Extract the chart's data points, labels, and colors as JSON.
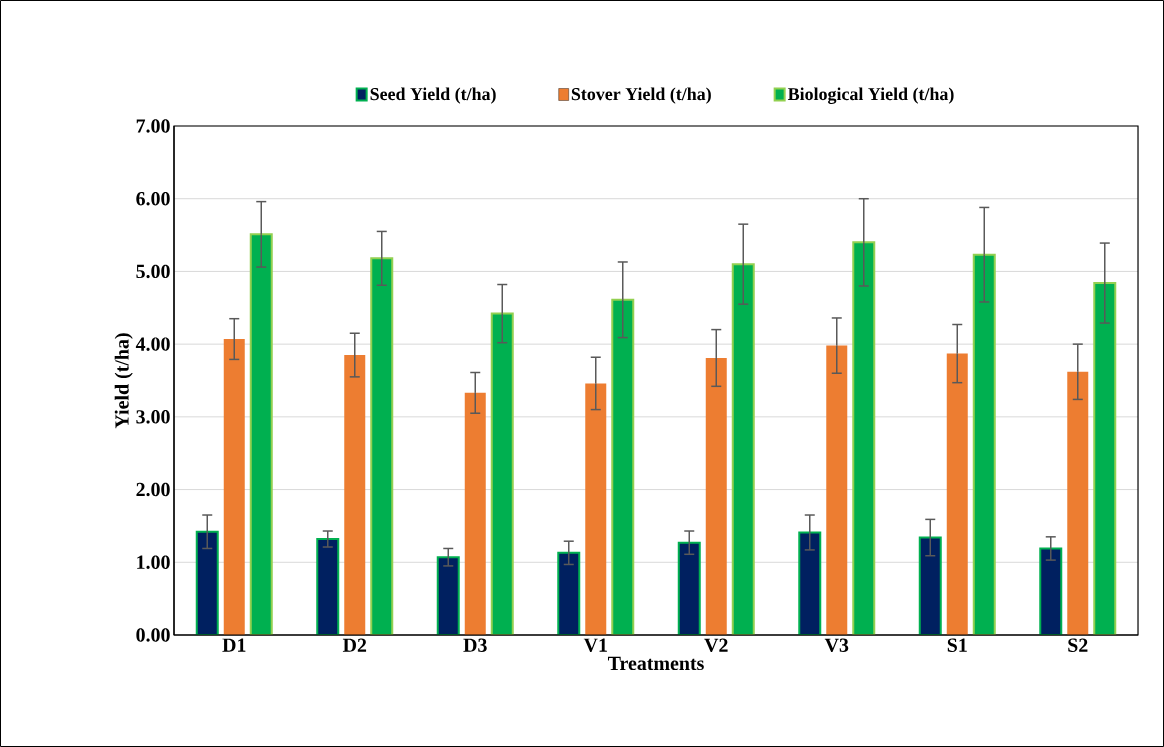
{
  "chart_data": {
    "type": "bar",
    "xlabel": "Treatments",
    "ylabel": "Yield (t/ha)",
    "categories": [
      "D1",
      "D2",
      "D3",
      "V1",
      "V2",
      "V3",
      "S1",
      "S2"
    ],
    "series": [
      {
        "name": "Seed Yield (t/ha)",
        "color": "#002060",
        "values": [
          1.42,
          1.32,
          1.07,
          1.13,
          1.27,
          1.41,
          1.34,
          1.19
        ],
        "errors": [
          0.23,
          0.11,
          0.12,
          0.16,
          0.16,
          0.24,
          0.25,
          0.16
        ]
      },
      {
        "name": "Stover Yield (t/ha)",
        "color": "#ed7d31",
        "values": [
          4.07,
          3.85,
          3.33,
          3.46,
          3.81,
          3.98,
          3.87,
          3.62
        ],
        "errors": [
          0.28,
          0.3,
          0.28,
          0.36,
          0.39,
          0.38,
          0.4,
          0.38
        ]
      },
      {
        "name": "Biological Yield (t/ha)",
        "color": "#00b050",
        "values": [
          5.51,
          5.18,
          4.42,
          4.61,
          5.1,
          5.4,
          5.23,
          4.84
        ],
        "errors": [
          0.45,
          0.37,
          0.4,
          0.52,
          0.55,
          0.6,
          0.65,
          0.55
        ]
      }
    ],
    "ylim": [
      0,
      7
    ],
    "yticks": [
      {
        "value": 0,
        "label": "0.00"
      },
      {
        "value": 1,
        "label": "1.00"
      },
      {
        "value": 2,
        "label": "2.00"
      },
      {
        "value": 3,
        "label": "3.00"
      },
      {
        "value": 4,
        "label": "4.00"
      },
      {
        "value": 5,
        "label": "5.00"
      },
      {
        "value": 6,
        "label": "6.00"
      },
      {
        "value": 7,
        "label": "7.00"
      }
    ],
    "grid": "y",
    "legend": "top"
  }
}
